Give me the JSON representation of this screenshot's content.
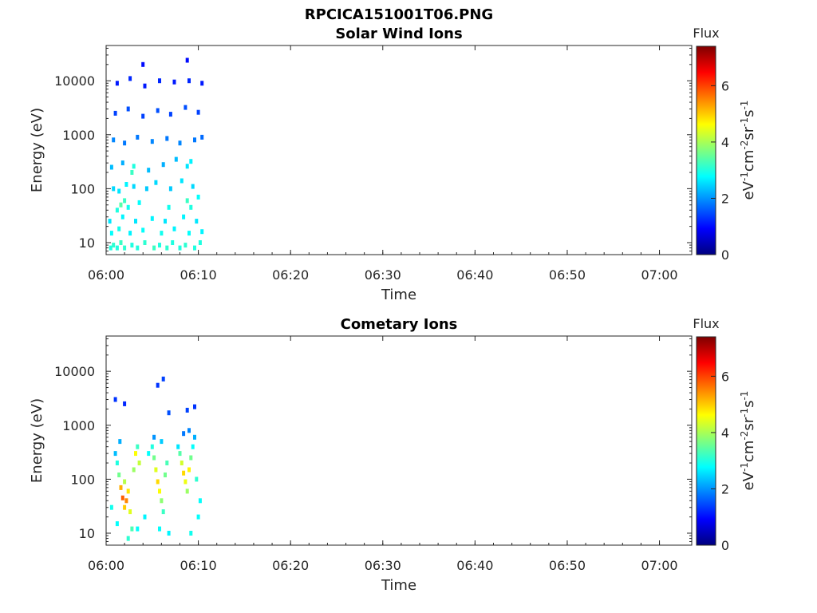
{
  "figure_title": "RPCICA151001T06.PNG",
  "colors": {
    "colormap": "jet",
    "colormap_stops": [
      "#00007f",
      "#0000ff",
      "#007fff",
      "#00ffff",
      "#7fff7f",
      "#ffff00",
      "#ff7f00",
      "#ff0000",
      "#7f0000"
    ]
  },
  "chart_data": [
    {
      "type": "heatmap",
      "title": "Solar Wind Ions",
      "xlabel": "Time",
      "ylabel": "Energy (eV)",
      "x_ticks": [
        "06:00",
        "06:10",
        "06:20",
        "06:30",
        "06:40",
        "06:50",
        "07:00"
      ],
      "x_range_minutes": [
        0,
        63.5
      ],
      "y_ticks": [
        "10",
        "100",
        "1000",
        "10000"
      ],
      "y_scale": "log",
      "ylim": [
        6,
        45000
      ],
      "grid": false,
      "colorbar": {
        "title": "Flux",
        "label": "eV-1cm-2sr-1s-1",
        "ticks": [
          "0",
          "2",
          "4",
          "6"
        ],
        "range": [
          0,
          7.4
        ]
      },
      "cells": [
        {
          "t": 0.5,
          "e": 8,
          "v": 3.0
        },
        {
          "t": 0.8,
          "e": 9,
          "v": 3.1
        },
        {
          "t": 1.2,
          "e": 8,
          "v": 3.0
        },
        {
          "t": 1.6,
          "e": 10,
          "v": 3.2
        },
        {
          "t": 2.0,
          "e": 8,
          "v": 3.1
        },
        {
          "t": 2.8,
          "e": 9,
          "v": 3.0
        },
        {
          "t": 3.4,
          "e": 8,
          "v": 3.0
        },
        {
          "t": 4.2,
          "e": 10,
          "v": 3.1
        },
        {
          "t": 5.2,
          "e": 8,
          "v": 3.2
        },
        {
          "t": 5.8,
          "e": 9,
          "v": 3.0
        },
        {
          "t": 6.6,
          "e": 8,
          "v": 3.1
        },
        {
          "t": 7.2,
          "e": 10,
          "v": 3.0
        },
        {
          "t": 8.0,
          "e": 8,
          "v": 3.0
        },
        {
          "t": 8.6,
          "e": 9,
          "v": 3.1
        },
        {
          "t": 9.6,
          "e": 8,
          "v": 3.0
        },
        {
          "t": 10.2,
          "e": 10,
          "v": 3.0
        },
        {
          "t": 0.6,
          "e": 15,
          "v": 2.8
        },
        {
          "t": 1.4,
          "e": 18,
          "v": 2.9
        },
        {
          "t": 2.6,
          "e": 15,
          "v": 2.7
        },
        {
          "t": 4.0,
          "e": 17,
          "v": 2.8
        },
        {
          "t": 6.0,
          "e": 15,
          "v": 2.9
        },
        {
          "t": 7.4,
          "e": 18,
          "v": 2.7
        },
        {
          "t": 9.0,
          "e": 15,
          "v": 2.8
        },
        {
          "t": 10.4,
          "e": 16,
          "v": 2.7
        },
        {
          "t": 0.4,
          "e": 25,
          "v": 2.6
        },
        {
          "t": 1.8,
          "e": 30,
          "v": 2.7
        },
        {
          "t": 3.2,
          "e": 25,
          "v": 2.6
        },
        {
          "t": 5.0,
          "e": 28,
          "v": 2.7
        },
        {
          "t": 6.4,
          "e": 25,
          "v": 2.6
        },
        {
          "t": 8.4,
          "e": 30,
          "v": 2.7
        },
        {
          "t": 9.8,
          "e": 25,
          "v": 2.6
        },
        {
          "t": 1.2,
          "e": 40,
          "v": 3.0
        },
        {
          "t": 1.6,
          "e": 50,
          "v": 3.4
        },
        {
          "t": 2.0,
          "e": 60,
          "v": 3.2
        },
        {
          "t": 2.4,
          "e": 45,
          "v": 2.9
        },
        {
          "t": 3.6,
          "e": 55,
          "v": 2.8
        },
        {
          "t": 6.8,
          "e": 45,
          "v": 2.9
        },
        {
          "t": 8.8,
          "e": 60,
          "v": 3.2
        },
        {
          "t": 9.2,
          "e": 45,
          "v": 3.0
        },
        {
          "t": 10.0,
          "e": 70,
          "v": 2.8
        },
        {
          "t": 0.8,
          "e": 100,
          "v": 2.5
        },
        {
          "t": 1.4,
          "e": 90,
          "v": 2.6
        },
        {
          "t": 2.2,
          "e": 120,
          "v": 2.7
        },
        {
          "t": 3.0,
          "e": 110,
          "v": 2.5
        },
        {
          "t": 4.4,
          "e": 100,
          "v": 2.4
        },
        {
          "t": 5.4,
          "e": 130,
          "v": 2.5
        },
        {
          "t": 7.0,
          "e": 100,
          "v": 2.4
        },
        {
          "t": 8.2,
          "e": 140,
          "v": 2.6
        },
        {
          "t": 9.4,
          "e": 110,
          "v": 2.5
        },
        {
          "t": 2.8,
          "e": 200,
          "v": 3.2
        },
        {
          "t": 3.0,
          "e": 260,
          "v": 3.0
        },
        {
          "t": 8.8,
          "e": 260,
          "v": 2.6
        },
        {
          "t": 9.2,
          "e": 320,
          "v": 2.7
        },
        {
          "t": 0.6,
          "e": 250,
          "v": 2.3
        },
        {
          "t": 1.8,
          "e": 300,
          "v": 2.2
        },
        {
          "t": 4.6,
          "e": 220,
          "v": 2.3
        },
        {
          "t": 6.2,
          "e": 280,
          "v": 2.2
        },
        {
          "t": 7.6,
          "e": 350,
          "v": 2.3
        },
        {
          "t": 0.8,
          "e": 800,
          "v": 1.9
        },
        {
          "t": 2.0,
          "e": 700,
          "v": 1.8
        },
        {
          "t": 3.4,
          "e": 900,
          "v": 1.8
        },
        {
          "t": 5.0,
          "e": 750,
          "v": 1.9
        },
        {
          "t": 6.6,
          "e": 850,
          "v": 1.8
        },
        {
          "t": 8.0,
          "e": 700,
          "v": 1.9
        },
        {
          "t": 9.6,
          "e": 800,
          "v": 1.8
        },
        {
          "t": 10.4,
          "e": 900,
          "v": 1.7
        },
        {
          "t": 1.0,
          "e": 2500,
          "v": 1.4
        },
        {
          "t": 2.4,
          "e": 3000,
          "v": 1.5
        },
        {
          "t": 4.0,
          "e": 2200,
          "v": 1.4
        },
        {
          "t": 5.6,
          "e": 2800,
          "v": 1.5
        },
        {
          "t": 7.0,
          "e": 2400,
          "v": 1.4
        },
        {
          "t": 8.6,
          "e": 3200,
          "v": 1.5
        },
        {
          "t": 10.0,
          "e": 2600,
          "v": 1.4
        },
        {
          "t": 1.2,
          "e": 9000,
          "v": 1.1
        },
        {
          "t": 2.6,
          "e": 11000,
          "v": 1.2
        },
        {
          "t": 4.2,
          "e": 8000,
          "v": 1.1
        },
        {
          "t": 5.8,
          "e": 10000,
          "v": 1.2
        },
        {
          "t": 7.4,
          "e": 9500,
          "v": 1.1
        },
        {
          "t": 9.0,
          "e": 10000,
          "v": 1.2
        },
        {
          "t": 10.4,
          "e": 9000,
          "v": 1.1
        },
        {
          "t": 4.0,
          "e": 20000,
          "v": 1.0
        },
        {
          "t": 8.8,
          "e": 24000,
          "v": 1.0
        }
      ]
    },
    {
      "type": "heatmap",
      "title": "Cometary Ions",
      "xlabel": "Time",
      "ylabel": "Energy (eV)",
      "x_ticks": [
        "06:00",
        "06:10",
        "06:20",
        "06:30",
        "06:40",
        "06:50",
        "07:00"
      ],
      "x_range_minutes": [
        0,
        63.5
      ],
      "y_ticks": [
        "10",
        "100",
        "1000",
        "10000"
      ],
      "y_scale": "log",
      "ylim": [
        6,
        45000
      ],
      "grid": false,
      "colorbar": {
        "title": "Flux",
        "label": "eV-1cm-2sr-1s-1",
        "ticks": [
          "0",
          "2",
          "4",
          "6"
        ],
        "range": [
          0,
          7.4
        ]
      },
      "cells": [
        {
          "t": 1.0,
          "e": 3000,
          "v": 1.3
        },
        {
          "t": 2.0,
          "e": 2500,
          "v": 1.2
        },
        {
          "t": 5.6,
          "e": 5500,
          "v": 1.3
        },
        {
          "t": 6.2,
          "e": 7200,
          "v": 1.4
        },
        {
          "t": 6.8,
          "e": 1700,
          "v": 1.5
        },
        {
          "t": 8.8,
          "e": 1900,
          "v": 1.4
        },
        {
          "t": 9.6,
          "e": 2200,
          "v": 1.3
        },
        {
          "t": 1.0,
          "e": 300,
          "v": 2.3
        },
        {
          "t": 1.2,
          "e": 200,
          "v": 3.0
        },
        {
          "t": 1.4,
          "e": 120,
          "v": 3.6
        },
        {
          "t": 1.6,
          "e": 70,
          "v": 5.2
        },
        {
          "t": 1.8,
          "e": 45,
          "v": 5.8
        },
        {
          "t": 2.0,
          "e": 30,
          "v": 5.0
        },
        {
          "t": 2.2,
          "e": 40,
          "v": 5.5
        },
        {
          "t": 2.4,
          "e": 60,
          "v": 4.8
        },
        {
          "t": 2.6,
          "e": 25,
          "v": 4.4
        },
        {
          "t": 2.8,
          "e": 12,
          "v": 3.3
        },
        {
          "t": 3.0,
          "e": 150,
          "v": 3.9
        },
        {
          "t": 3.2,
          "e": 300,
          "v": 4.6
        },
        {
          "t": 3.4,
          "e": 400,
          "v": 3.2
        },
        {
          "t": 3.6,
          "e": 200,
          "v": 4.2
        },
        {
          "t": 1.5,
          "e": 500,
          "v": 2.2
        },
        {
          "t": 2.0,
          "e": 90,
          "v": 4.1
        },
        {
          "t": 4.6,
          "e": 300,
          "v": 2.8
        },
        {
          "t": 5.0,
          "e": 400,
          "v": 3.0
        },
        {
          "t": 5.2,
          "e": 250,
          "v": 3.6
        },
        {
          "t": 5.4,
          "e": 150,
          "v": 4.4
        },
        {
          "t": 5.6,
          "e": 90,
          "v": 4.9
        },
        {
          "t": 5.8,
          "e": 60,
          "v": 4.6
        },
        {
          "t": 6.0,
          "e": 40,
          "v": 3.8
        },
        {
          "t": 6.2,
          "e": 25,
          "v": 3.2
        },
        {
          "t": 6.4,
          "e": 120,
          "v": 3.6
        },
        {
          "t": 6.6,
          "e": 200,
          "v": 3.3
        },
        {
          "t": 5.2,
          "e": 600,
          "v": 2.0
        },
        {
          "t": 6.0,
          "e": 500,
          "v": 2.4
        },
        {
          "t": 7.8,
          "e": 400,
          "v": 2.6
        },
        {
          "t": 8.0,
          "e": 300,
          "v": 3.4
        },
        {
          "t": 8.2,
          "e": 200,
          "v": 4.3
        },
        {
          "t": 8.4,
          "e": 130,
          "v": 4.9
        },
        {
          "t": 8.6,
          "e": 90,
          "v": 4.5
        },
        {
          "t": 8.8,
          "e": 60,
          "v": 3.9
        },
        {
          "t": 9.0,
          "e": 150,
          "v": 4.7
        },
        {
          "t": 9.2,
          "e": 250,
          "v": 3.6
        },
        {
          "t": 9.4,
          "e": 400,
          "v": 2.8
        },
        {
          "t": 9.6,
          "e": 600,
          "v": 2.2
        },
        {
          "t": 9.8,
          "e": 100,
          "v": 3.1
        },
        {
          "t": 10.2,
          "e": 40,
          "v": 2.8
        },
        {
          "t": 8.4,
          "e": 700,
          "v": 1.8
        },
        {
          "t": 9.0,
          "e": 800,
          "v": 1.9
        },
        {
          "t": 0.6,
          "e": 30,
          "v": 2.9
        },
        {
          "t": 1.2,
          "e": 15,
          "v": 2.8
        },
        {
          "t": 2.4,
          "e": 8,
          "v": 3.1
        },
        {
          "t": 3.4,
          "e": 12,
          "v": 2.8
        },
        {
          "t": 4.2,
          "e": 20,
          "v": 2.7
        },
        {
          "t": 5.8,
          "e": 12,
          "v": 2.8
        },
        {
          "t": 6.8,
          "e": 10,
          "v": 2.7
        },
        {
          "t": 9.2,
          "e": 10,
          "v": 2.9
        },
        {
          "t": 10.0,
          "e": 20,
          "v": 2.8
        }
      ]
    }
  ]
}
